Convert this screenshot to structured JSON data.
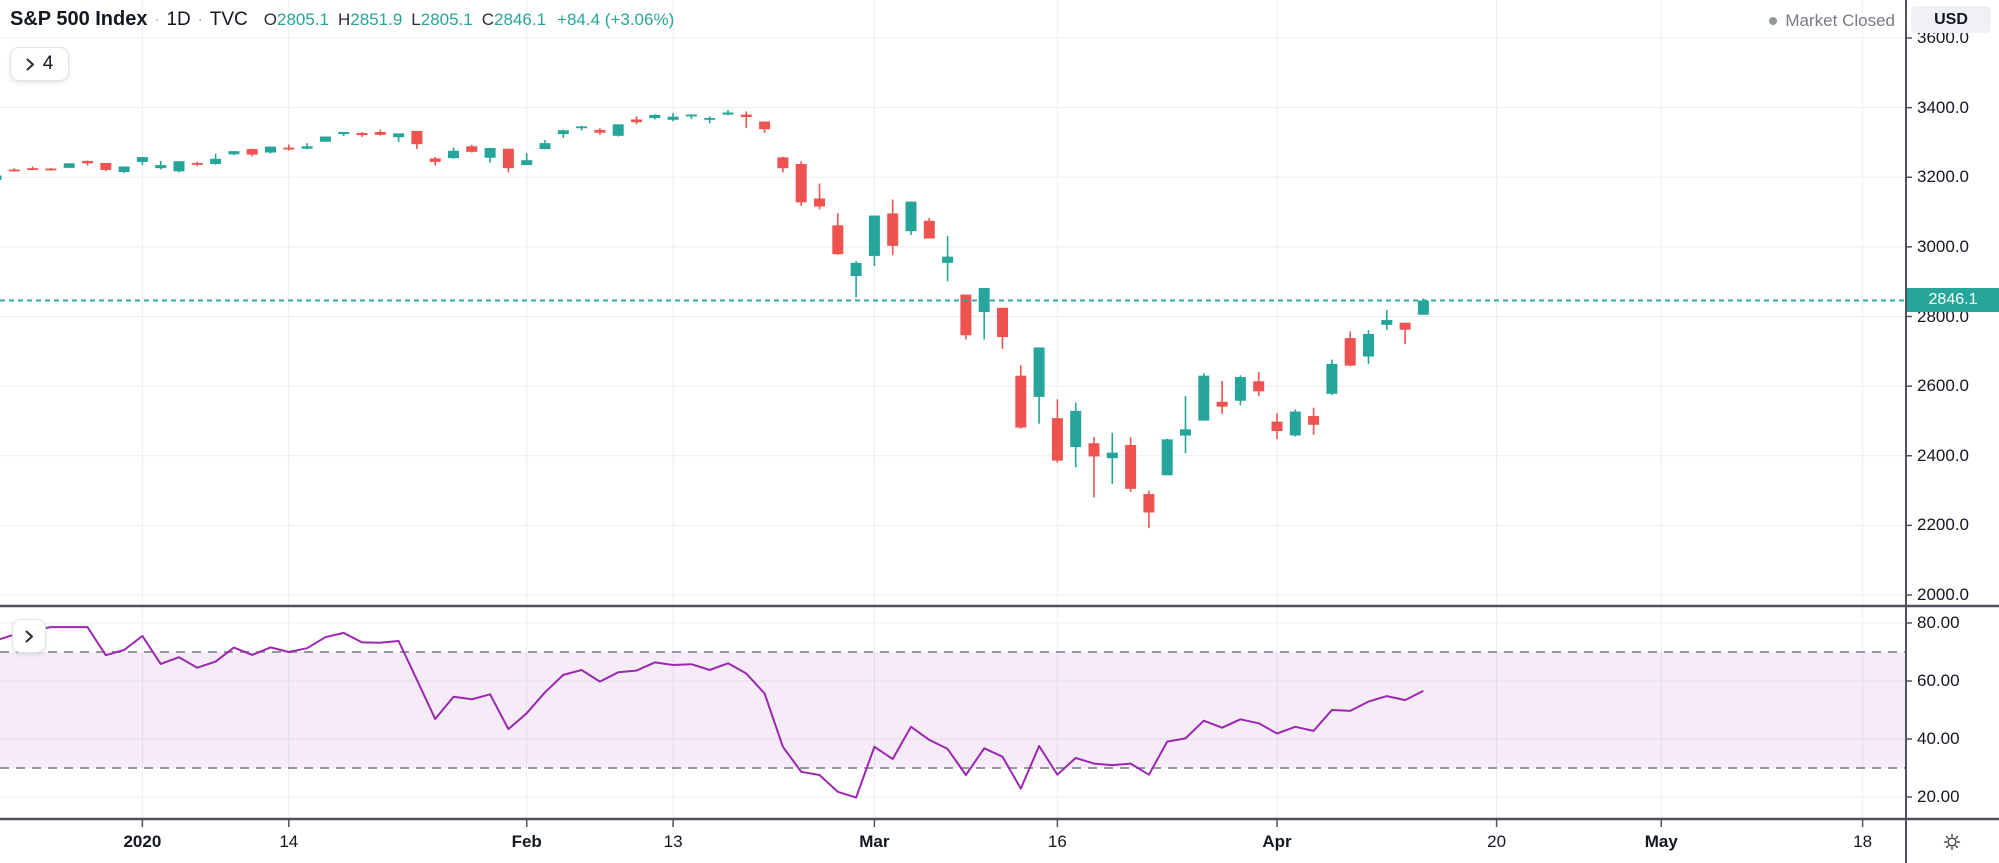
{
  "header": {
    "symbol": "S&P 500 Index",
    "separator": "·",
    "interval": "1D",
    "exchange": "TVC",
    "ohlc": {
      "open_label": "O",
      "open": "2805.1",
      "high_label": "H",
      "high": "2851.9",
      "low_label": "L",
      "low": "2805.1",
      "close_label": "C",
      "close": "2846.1",
      "change": "+84.4 (+3.06%)"
    },
    "market_status": "Market Closed",
    "legend_hidden_count": "4"
  },
  "price_axis": {
    "currency": "USD",
    "labels": [
      3600,
      3400,
      3200,
      3000,
      2800,
      2600,
      2400,
      2200,
      2000
    ],
    "last_price": "2846.1"
  },
  "rsi_axis": {
    "labels": [
      80,
      60,
      40,
      20
    ]
  },
  "time_axis": {
    "ticks": [
      {
        "label": "2020",
        "day": 8,
        "bold": true
      },
      {
        "label": "14",
        "day": 16,
        "bold": false
      },
      {
        "label": "Feb",
        "day": 29,
        "bold": true
      },
      {
        "label": "13",
        "day": 37,
        "bold": false
      },
      {
        "label": "Mar",
        "day": 48,
        "bold": true
      },
      {
        "label": "16",
        "day": 58,
        "bold": false
      },
      {
        "label": "Apr",
        "day": 70,
        "bold": true
      },
      {
        "label": "20",
        "day": 82,
        "bold": false
      },
      {
        "label": "May",
        "day": 91,
        "bold": true
      },
      {
        "label": "18",
        "day": 102,
        "bold": false
      }
    ]
  },
  "colors": {
    "up": "#26a69a",
    "down": "#ef5350",
    "rsi_line": "#9c27b0",
    "rsi_band_fill": "rgba(156,39,176,0.09)",
    "rsi_band_border": "#9598a1",
    "grid": "#e8edf4",
    "axis_border": "#50535e",
    "text_dark": "#131722",
    "text_gray": "#787b86",
    "last_price_line": "#26a69a"
  },
  "chart_data": {
    "type": "candlestick",
    "title": "S&P 500 Index",
    "interval": "1D",
    "price_axis_range": [
      2000,
      3650
    ],
    "last_close": 2846.1,
    "candles_ohlc": [
      [
        3192,
        3206,
        3191,
        3205
      ],
      [
        3222,
        3226,
        3216,
        3221
      ],
      [
        3226,
        3231,
        3222,
        3224
      ],
      [
        3225,
        3227,
        3220,
        3223
      ],
      [
        3227,
        3240,
        3227,
        3240
      ],
      [
        3247,
        3248,
        3234,
        3240
      ],
      [
        3241,
        3241,
        3217,
        3221
      ],
      [
        3215,
        3231,
        3212,
        3231
      ],
      [
        3244,
        3258,
        3235,
        3258
      ],
      [
        3226,
        3247,
        3222,
        3235
      ],
      [
        3217,
        3246,
        3214,
        3246
      ],
      [
        3241,
        3245,
        3232,
        3237
      ],
      [
        3238,
        3268,
        3236,
        3253
      ],
      [
        3266,
        3275,
        3263,
        3275
      ],
      [
        3281,
        3282,
        3260,
        3265
      ],
      [
        3271,
        3288,
        3268,
        3288
      ],
      [
        3285,
        3294,
        3277,
        3283
      ],
      [
        3282,
        3298,
        3280,
        3289
      ],
      [
        3302,
        3317,
        3302,
        3317
      ],
      [
        3324,
        3330,
        3318,
        3330
      ],
      [
        3327,
        3330,
        3316,
        3321
      ],
      [
        3330,
        3337,
        3320,
        3322
      ],
      [
        3315,
        3326,
        3301,
        3326
      ],
      [
        3333,
        3333,
        3281,
        3295
      ],
      [
        3254,
        3258,
        3234,
        3244
      ],
      [
        3255,
        3285,
        3253,
        3276
      ],
      [
        3289,
        3293,
        3271,
        3273
      ],
      [
        3256,
        3285,
        3242,
        3284
      ],
      [
        3282,
        3282,
        3214,
        3226
      ],
      [
        3235,
        3269,
        3235,
        3249
      ],
      [
        3281,
        3307,
        3280,
        3298
      ],
      [
        3324,
        3337,
        3313,
        3335
      ],
      [
        3345,
        3348,
        3334,
        3346
      ],
      [
        3336,
        3341,
        3322,
        3328
      ],
      [
        3319,
        3352,
        3317,
        3352
      ],
      [
        3366,
        3375,
        3352,
        3358
      ],
      [
        3370,
        3381,
        3366,
        3379
      ],
      [
        3365,
        3385,
        3361,
        3374
      ],
      [
        3378,
        3381,
        3367,
        3380
      ],
      [
        3369,
        3375,
        3355,
        3370
      ],
      [
        3380,
        3393,
        3378,
        3386
      ],
      [
        3380,
        3389,
        3341,
        3373
      ],
      [
        3360,
        3360,
        3328,
        3338
      ],
      [
        3257,
        3259,
        3214,
        3226
      ],
      [
        3238,
        3246,
        3118,
        3128
      ],
      [
        3139,
        3182,
        3108,
        3116
      ],
      [
        3062,
        3097,
        2977,
        2979
      ],
      [
        2916,
        2959,
        2855,
        2954
      ],
      [
        2974,
        3090,
        2945,
        3090
      ],
      [
        3096,
        3136,
        2976,
        3003
      ],
      [
        3045,
        3130,
        3034,
        3130
      ],
      [
        3075,
        3083,
        3024,
        3024
      ],
      [
        2954,
        3031,
        2901,
        2972
      ],
      [
        2863,
        2863,
        2734,
        2746
      ],
      [
        2813,
        2882,
        2734,
        2882
      ],
      [
        2825,
        2825,
        2707,
        2741
      ],
      [
        2630,
        2660,
        2478,
        2481
      ],
      [
        2569,
        2711,
        2492,
        2711
      ],
      [
        2508,
        2562,
        2380,
        2386
      ],
      [
        2425,
        2553,
        2367,
        2529
      ],
      [
        2436,
        2454,
        2280,
        2398
      ],
      [
        2393,
        2466,
        2319,
        2409
      ],
      [
        2431,
        2453,
        2296,
        2305
      ],
      [
        2290,
        2300,
        2192,
        2237
      ],
      [
        2344,
        2449,
        2344,
        2447
      ],
      [
        2458,
        2571,
        2407,
        2476
      ],
      [
        2501,
        2637,
        2501,
        2630
      ],
      [
        2555,
        2615,
        2520,
        2541
      ],
      [
        2558,
        2631,
        2545,
        2626
      ],
      [
        2614,
        2641,
        2571,
        2585
      ],
      [
        2498,
        2522,
        2448,
        2471
      ],
      [
        2458,
        2533,
        2455,
        2527
      ],
      [
        2514,
        2538,
        2460,
        2489
      ],
      [
        2578,
        2676,
        2574,
        2664
      ],
      [
        2738,
        2757,
        2657,
        2659
      ],
      [
        2685,
        2761,
        2663,
        2750
      ],
      [
        2776,
        2818,
        2762,
        2790
      ],
      [
        2782,
        2782,
        2721,
        2762
      ],
      [
        2805.1,
        2851.9,
        2805.1,
        2846.1
      ]
    ],
    "rsi": {
      "range": [
        0,
        100
      ],
      "band": [
        30,
        70
      ],
      "values": [
        74.0,
        76.0,
        77.5,
        78.6,
        78.6,
        78.6,
        68.9,
        70.7,
        75.5,
        65.9,
        68.2,
        64.6,
        66.7,
        71.5,
        69.0,
        71.6,
        70.0,
        71.3,
        75.1,
        76.6,
        73.3,
        73.2,
        73.8,
        60.4,
        46.9,
        54.6,
        53.7,
        55.4,
        43.4,
        48.9,
        56.1,
        62.1,
        63.8,
        59.8,
        63.0,
        63.6,
        66.4,
        65.5,
        65.8,
        63.8,
        66.1,
        62.6,
        55.7,
        37.3,
        28.7,
        27.6,
        21.8,
        19.8,
        37.3,
        33.1,
        44.2,
        39.7,
        36.6,
        27.6,
        36.8,
        33.9,
        22.9,
        37.6,
        27.7,
        33.5,
        31.5,
        31.0,
        31.5,
        27.7,
        39.1,
        40.2,
        46.3,
        43.9,
        46.8,
        45.4,
        41.9,
        44.2,
        42.8,
        50.0,
        49.7,
        52.9,
        54.8,
        53.4,
        56.6
      ]
    }
  }
}
